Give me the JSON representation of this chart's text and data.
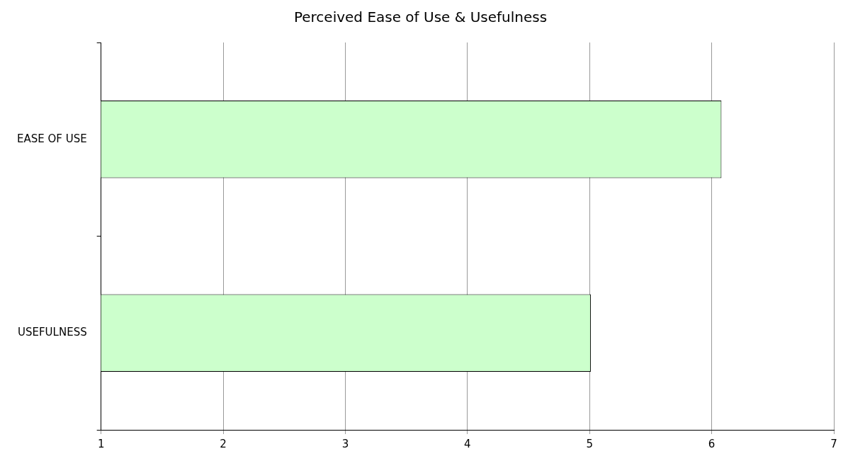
{
  "chart_data": {
    "type": "bar",
    "orientation": "horizontal",
    "title": "Perceived Ease of Use & Usefulness",
    "categories": [
      "EASE OF USE",
      "USEFULNESS"
    ],
    "values": [
      6.08,
      5.01
    ],
    "color": "#ccffcc",
    "xlim": [
      1,
      7
    ],
    "xticks": [
      1,
      2,
      3,
      4,
      5,
      6,
      7
    ],
    "grid": "x"
  }
}
